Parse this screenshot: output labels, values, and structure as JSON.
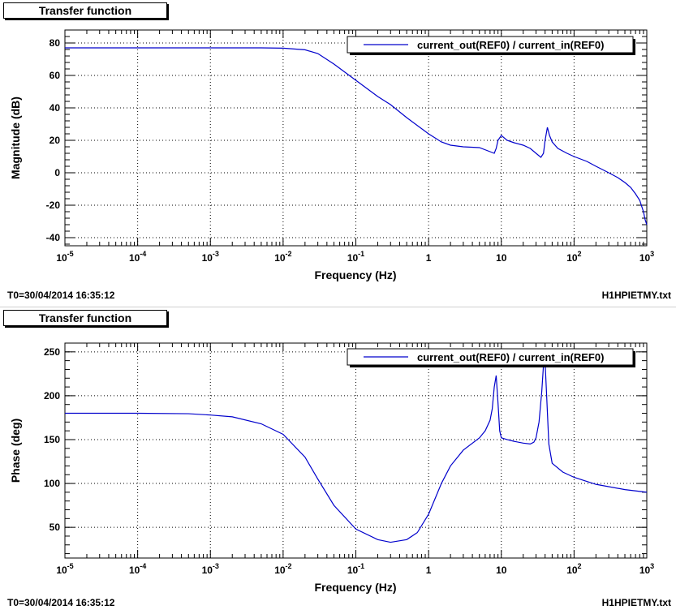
{
  "panels": [
    {
      "title": "Transfer function",
      "footer_left": "T0=30/04/2014 16:35:12",
      "footer_right": "H1HPIETMY.txt"
    },
    {
      "title": "Transfer function",
      "footer_left": "T0=30/04/2014 16:35:12",
      "footer_right": "H1HPIETMY.txt"
    }
  ],
  "chart_data": [
    {
      "type": "line",
      "title": "Transfer function",
      "xlabel": "Frequency (Hz)",
      "ylabel": "Magnitude (dB)",
      "x_scale": "log",
      "xlim": [
        1e-05,
        1000
      ],
      "ylim": [
        -45,
        88
      ],
      "x_ticks": [
        {
          "base": "10",
          "exp": "-5"
        },
        {
          "base": "10",
          "exp": "-4"
        },
        {
          "base": "10",
          "exp": "-3"
        },
        {
          "base": "10",
          "exp": "-2"
        },
        {
          "base": "10",
          "exp": "-1"
        },
        {
          "base": "1",
          "exp": ""
        },
        {
          "base": "10",
          "exp": ""
        },
        {
          "base": "10",
          "exp": "2"
        },
        {
          "base": "10",
          "exp": "3"
        }
      ],
      "y_ticks": [
        -40,
        -20,
        0,
        20,
        40,
        60,
        80
      ],
      "grid": true,
      "legend_position": "top-right",
      "line_color": "#0000cc",
      "series": [
        {
          "name": "current_out(REF0) / current_in(REF0)",
          "x": [
            1e-05,
            0.001,
            0.005,
            0.01,
            0.02,
            0.03,
            0.05,
            0.1,
            0.2,
            0.3,
            0.5,
            1.0,
            1.5,
            2,
            3,
            5,
            7,
            8,
            8.5,
            9,
            10,
            12,
            15,
            20,
            25,
            30,
            35,
            38,
            40,
            43,
            46,
            50,
            60,
            80,
            100,
            150,
            200,
            300,
            400,
            500,
            600,
            700,
            800,
            900,
            950,
            1000
          ],
          "y": [
            77,
            77,
            77,
            76.8,
            75.8,
            73.5,
            67,
            57,
            47,
            42,
            34,
            24,
            19,
            17,
            16,
            15.5,
            13,
            12,
            15,
            20,
            23,
            20,
            18.5,
            17,
            15,
            12,
            9.5,
            12,
            20,
            28,
            23,
            19,
            15,
            12,
            10,
            7,
            4,
            0,
            -3,
            -6,
            -9,
            -13,
            -17,
            -24,
            -29,
            -32
          ]
        }
      ]
    },
    {
      "type": "line",
      "title": "Transfer function",
      "xlabel": "Frequency (Hz)",
      "ylabel": "Phase (deg)",
      "x_scale": "log",
      "xlim": [
        1e-05,
        1000
      ],
      "ylim": [
        15,
        260
      ],
      "x_ticks": [
        {
          "base": "10",
          "exp": "-5"
        },
        {
          "base": "10",
          "exp": "-4"
        },
        {
          "base": "10",
          "exp": "-3"
        },
        {
          "base": "10",
          "exp": "-2"
        },
        {
          "base": "10",
          "exp": "-1"
        },
        {
          "base": "1",
          "exp": ""
        },
        {
          "base": "10",
          "exp": ""
        },
        {
          "base": "10",
          "exp": "2"
        },
        {
          "base": "10",
          "exp": "3"
        }
      ],
      "y_ticks": [
        50,
        100,
        150,
        200,
        250
      ],
      "grid": true,
      "legend_position": "top-right",
      "line_color": "#0000cc",
      "series": [
        {
          "name": "current_out(REF0) / current_in(REF0)",
          "x": [
            1e-05,
            0.0001,
            0.0005,
            0.001,
            0.002,
            0.005,
            0.01,
            0.02,
            0.03,
            0.05,
            0.1,
            0.2,
            0.3,
            0.5,
            0.7,
            1.0,
            1.5,
            2,
            3,
            5,
            6,
            7,
            7.5,
            8,
            8.5,
            9,
            9.5,
            10,
            12,
            15,
            20,
            25,
            28,
            30,
            33,
            36,
            38,
            40,
            42,
            45,
            50,
            70,
            100,
            200,
            500,
            1000
          ],
          "y": [
            180,
            180,
            179.5,
            178,
            176,
            168,
            156,
            130,
            105,
            75,
            48,
            36,
            33,
            36,
            44,
            65,
            100,
            120,
            138,
            152,
            160,
            172,
            185,
            210,
            223,
            192,
            160,
            152,
            150,
            148,
            146,
            145,
            147,
            152,
            170,
            205,
            235,
            238,
            200,
            145,
            123,
            113,
            107,
            99,
            93,
            90
          ]
        }
      ]
    }
  ]
}
